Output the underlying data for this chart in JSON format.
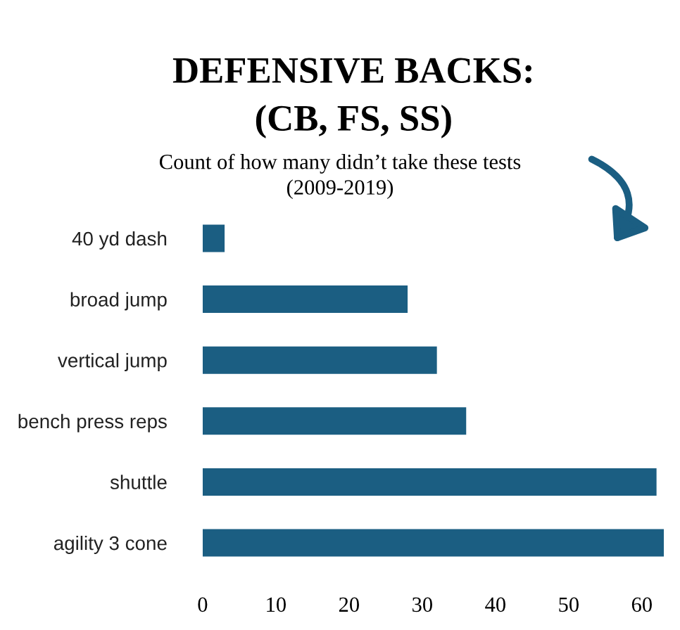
{
  "chart_data": {
    "type": "bar",
    "orientation": "horizontal",
    "title": "DEFENSIVE BACKS:\n(CB, FS, SS)",
    "subtitle": "Count of how many didn’t take these tests\n(2009-2019)",
    "categories": [
      "40 yd dash",
      "broad jump",
      "vertical jump",
      "bench press reps",
      "shuttle",
      "agility 3 cone"
    ],
    "values": [
      3,
      28,
      32,
      36,
      62,
      63
    ],
    "color": "#1b5e82",
    "xlim": [
      0,
      64
    ],
    "xticks": [
      0,
      10,
      20,
      30,
      40,
      50,
      60
    ],
    "grid": false,
    "legend": false
  }
}
